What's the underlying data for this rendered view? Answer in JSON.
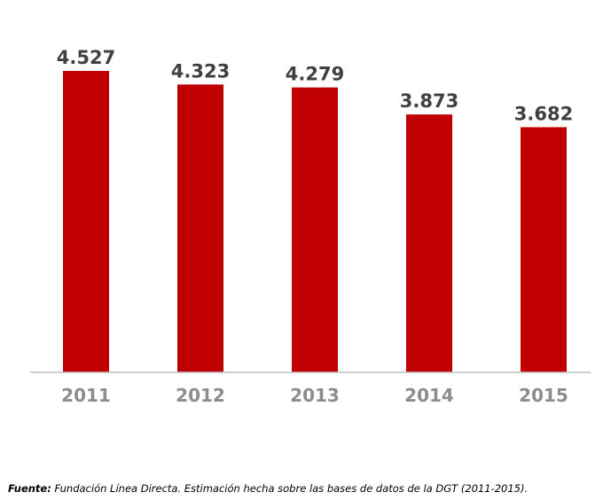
{
  "chart_data": {
    "type": "bar",
    "categories": [
      "2011",
      "2012",
      "2013",
      "2014",
      "2015"
    ],
    "values": [
      4527,
      4323,
      4279,
      3873,
      3682
    ],
    "value_labels": [
      "4.527",
      "4.323",
      "4.279",
      "3.873",
      "3.682"
    ],
    "title": "",
    "xlabel": "",
    "ylabel": "",
    "ylim": [
      0,
      4527
    ],
    "grid": false,
    "bar_color": "#c00000"
  },
  "source": {
    "label": "Fuente:",
    "text": " Fundación Línea Directa. Estimación hecha sobre las bases de datos de la DGT (2011-2015)."
  }
}
